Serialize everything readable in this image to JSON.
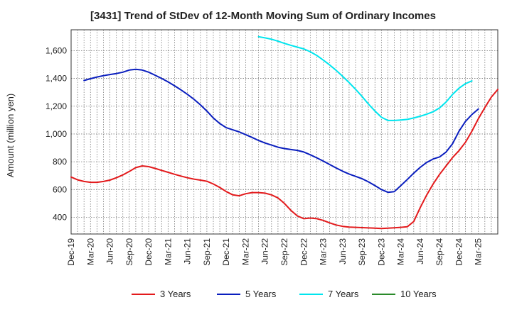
{
  "chart_data": {
    "type": "line",
    "title": "[3431]  Trend of StDev of 12-Month Moving Sum of Ordinary Incomes",
    "xlabel": "",
    "ylabel": "Amount (million yen)",
    "ylim": [
      280,
      1750
    ],
    "yticks": [
      400,
      600,
      800,
      1000,
      1200,
      1400,
      1600
    ],
    "ytick_labels": [
      "400",
      "600",
      "800",
      "1,000",
      "1,200",
      "1,400",
      "1,600"
    ],
    "x_range": [
      0,
      66
    ],
    "xtick_labels": [
      "Dec-19",
      "Mar-20",
      "Jun-20",
      "Sep-20",
      "Dec-20",
      "Mar-21",
      "Jun-21",
      "Sep-21",
      "Dec-21",
      "Mar-22",
      "Jun-22",
      "Sep-22",
      "Dec-22",
      "Mar-23",
      "Jun-23",
      "Sep-23",
      "Dec-23",
      "Mar-24",
      "Jun-24",
      "Sep-24",
      "Dec-24",
      "Mar-25"
    ],
    "grid": true,
    "legend_position": "bottom",
    "series": [
      {
        "name": "3 Years",
        "color": "#e31a1c",
        "x_start": 0,
        "values": [
          690,
          670,
          658,
          652,
          652,
          658,
          668,
          685,
          705,
          730,
          758,
          770,
          765,
          752,
          738,
          724,
          710,
          697,
          685,
          675,
          668,
          660,
          640,
          615,
          585,
          562,
          555,
          570,
          578,
          578,
          574,
          562,
          540,
          500,
          450,
          410,
          390,
          395,
          390,
          378,
          360,
          345,
          335,
          330,
          328,
          326,
          324,
          322,
          320,
          322,
          325,
          328,
          332,
          370,
          470,
          560,
          640,
          710,
          770,
          830,
          880,
          940,
          1020,
          1110,
          1190,
          1265,
          1320
        ]
      },
      {
        "name": "5 Years",
        "color": "#0a1ebe",
        "x_start": 2,
        "values": [
          1385,
          1398,
          1410,
          1420,
          1428,
          1435,
          1445,
          1460,
          1465,
          1460,
          1445,
          1423,
          1400,
          1375,
          1347,
          1317,
          1285,
          1250,
          1210,
          1165,
          1115,
          1075,
          1045,
          1030,
          1015,
          995,
          975,
          953,
          935,
          920,
          905,
          895,
          888,
          882,
          870,
          850,
          828,
          805,
          780,
          755,
          732,
          712,
          695,
          678,
          655,
          628,
          600,
          580,
          585,
          628,
          672,
          718,
          760,
          795,
          820,
          835,
          870,
          930,
          1020,
          1090,
          1140,
          1180
        ]
      },
      {
        "name": "7 Years",
        "color": "#00e5ee",
        "x_start": 29,
        "values": [
          1700,
          1692,
          1682,
          1668,
          1652,
          1638,
          1625,
          1612,
          1592,
          1565,
          1532,
          1497,
          1458,
          1415,
          1370,
          1322,
          1270,
          1215,
          1165,
          1120,
          1097,
          1097,
          1100,
          1105,
          1115,
          1128,
          1142,
          1160,
          1188,
          1230,
          1285,
          1330,
          1362,
          1382
        ]
      },
      {
        "name": "10 Years",
        "color": "#2a8a2a",
        "x_start": 0,
        "values": []
      }
    ]
  }
}
